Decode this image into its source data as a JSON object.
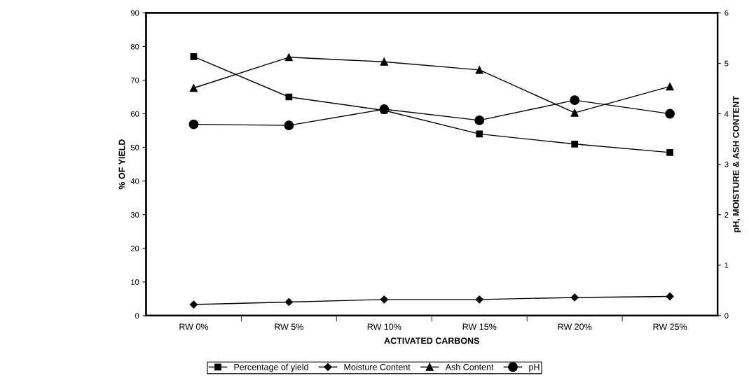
{
  "chart_data": {
    "type": "line",
    "xlabel": "ACTIVATED CARBONS",
    "ylabel": "% OF YIELD",
    "y2label": "pH, MOISTURE & ASH CONTENT",
    "categories": [
      "RW 0%",
      "RW 5%",
      "RW 10%",
      "RW 15%",
      "RW 20%",
      "RW 25%"
    ],
    "series": [
      {
        "name": "Percentage of yield",
        "color": "#000000",
        "marker": "square",
        "values": [
          77,
          65,
          61,
          54,
          51,
          48.5
        ]
      },
      {
        "name": "Moisture Content",
        "color": "#000000",
        "marker": "diamond",
        "axis": "y2",
        "values": [
          0.22,
          0.27,
          0.32,
          0.32,
          0.36,
          0.38
        ]
      },
      {
        "name": "Ash Content",
        "color": "#000000",
        "marker": "triangle",
        "axis": "y2",
        "values": [
          4.51,
          5.12,
          5.03,
          4.87,
          4.02,
          4.54
        ]
      },
      {
        "name": "pH",
        "color": "#000000",
        "marker": "circle",
        "axis": "y2",
        "values": [
          3.79,
          3.77,
          4.09,
          3.87,
          4.27,
          4.0
        ]
      }
    ],
    "ylim": [
      0,
      90
    ],
    "yticks": [
      0,
      10,
      20,
      30,
      40,
      50,
      60,
      70,
      80,
      90
    ],
    "y2lim": [
      0,
      6
    ],
    "y2ticks": [
      0,
      1,
      2,
      3,
      4,
      5,
      6
    ],
    "grid": false,
    "legend": "bottom",
    "line_style": "solid"
  }
}
